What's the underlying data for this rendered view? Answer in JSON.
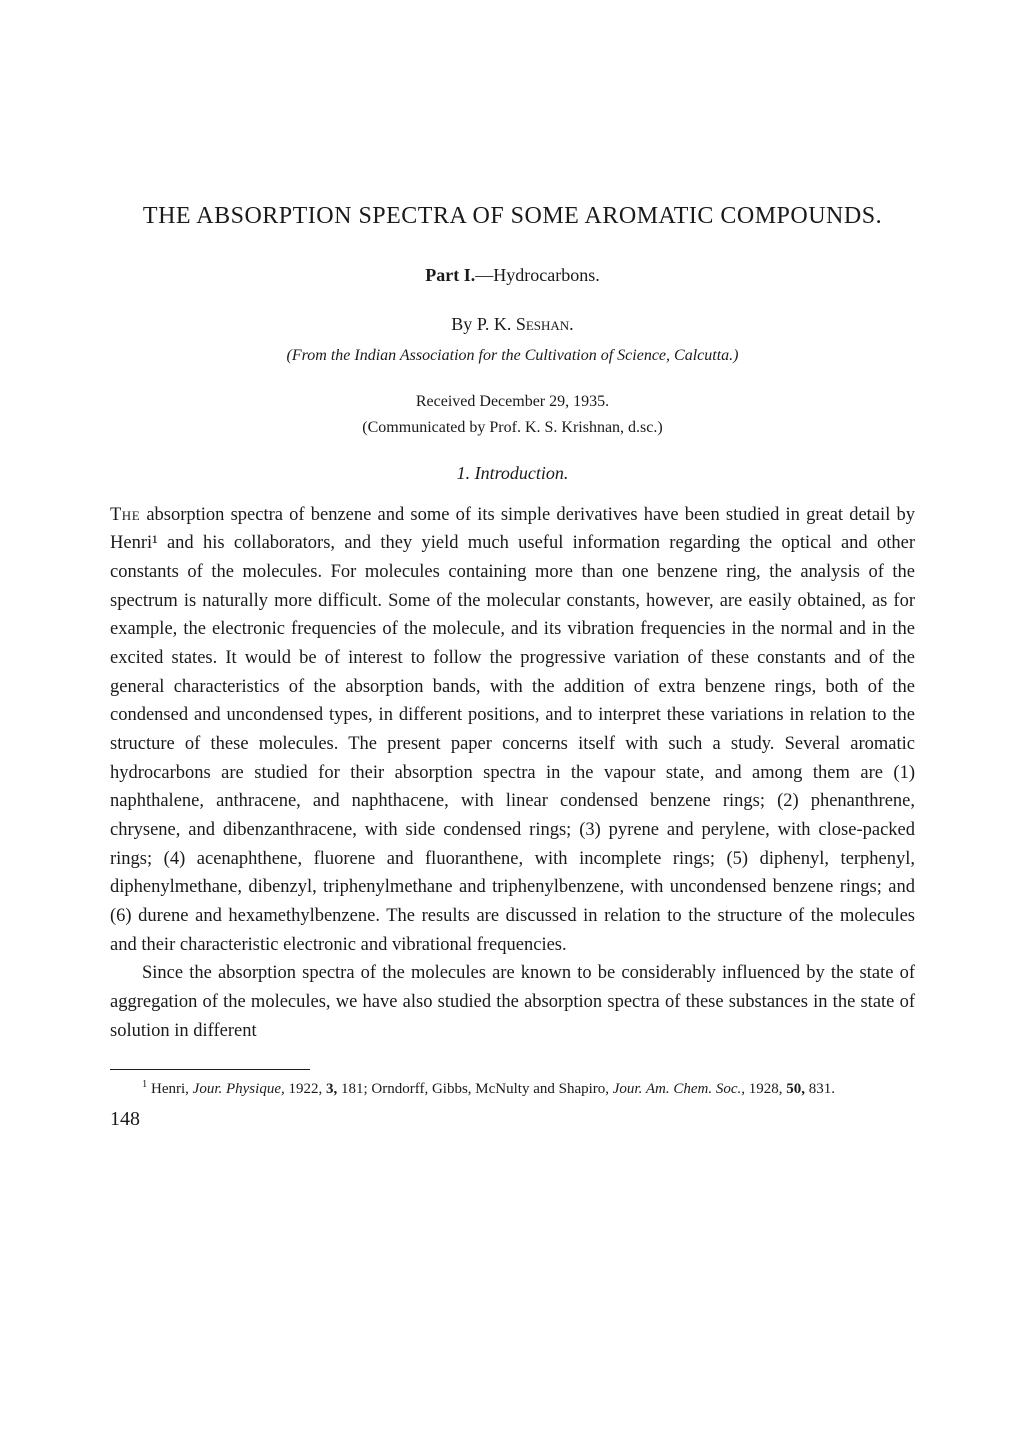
{
  "title": "THE ABSORPTION SPECTRA OF SOME AROMATIC COMPOUNDS.",
  "part_bold": "Part I.",
  "part_rest": "—Hydrocarbons.",
  "author_by": "By ",
  "author_name": "P. K. Seshan.",
  "affiliation": "(From the Indian Association for the Cultivation of Science, Calcutta.)",
  "received": "Received December 29, 1935.",
  "communicated": "(Communicated by Prof. K. S. Krishnan, d.sc.)",
  "section_heading": "1.  Introduction.",
  "para1_first": "The",
  "para1_rest": " absorption spectra of benzene and some of its simple derivatives have been studied in great detail by Henri¹ and his collaborators, and they yield much useful information regarding the optical and other constants of the molecules. For molecules containing more than one benzene ring, the analysis of the spectrum is naturally more difficult. Some of the molecular constants, however, are easily obtained, as for example, the electronic frequencies of the molecule, and its vibration frequencies in the normal and in the excited states. It would be of interest to follow the progressive variation of these constants and of the general characteristics of the absorption bands, with the addition of extra benzene rings, both of the condensed and uncondensed types, in different positions, and to interpret these variations in relation to the structure of these molecules. The present paper concerns itself with such a study. Several aromatic hydrocarbons are studied for their absorption spectra in the vapour state, and among them are (1) naphthalene, anthracene, and naphthacene, with linear condensed benzene rings; (2) phenanthrene, chrysene, and dibenzanthracene, with side condensed rings; (3) pyrene and perylene, with close-packed rings; (4) acenaphthene, fluorene and fluoranthene, with incomplete rings; (5) diphenyl, terphenyl, diphenylmethane, dibenzyl, triphenylmethane and triphenylbenzene, with uncondensed benzene rings; and (6) durene and hexamethylbenzene. The results are discussed in relation to the structure of the molecules and their characteristic electronic and vibrational frequencies.",
  "para2": "Since the absorption spectra of the molecules are known to be considerably influenced by the state of aggregation of the molecules, we have also studied the absorption spectra of these substances in the state of solution in different",
  "footnote_marker": "1",
  "footnote_text_a": " Henri, ",
  "footnote_text_b_italic": "Jour. Physique,",
  "footnote_text_c": " 1922, ",
  "footnote_text_d_bold": "3,",
  "footnote_text_e": " 181; Orndorff, Gibbs, McNulty and Shapiro, ",
  "footnote_text_f_italic": "Jour. Am. Chem. Soc.,",
  "footnote_text_g": " 1928, ",
  "footnote_text_h_bold": "50,",
  "footnote_text_i": " 831.",
  "page_number": "148"
}
